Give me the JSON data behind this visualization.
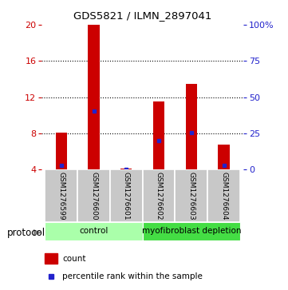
{
  "title": "GDS5821 / ILMN_2897041",
  "samples": [
    "GSM1276599",
    "GSM1276600",
    "GSM1276601",
    "GSM1276602",
    "GSM1276603",
    "GSM1276604"
  ],
  "bar_bottom": 4,
  "bar_tops": [
    8.1,
    20.0,
    4.08,
    11.5,
    13.5,
    6.8
  ],
  "percentile_values": [
    4.5,
    10.5,
    4.0,
    7.2,
    8.1,
    4.5
  ],
  "bar_color": "#cc0000",
  "percentile_color": "#2222cc",
  "ylim_left": [
    4,
    20
  ],
  "yticks_left": [
    4,
    8,
    12,
    16,
    20
  ],
  "yticks_right": [
    0,
    25,
    50,
    75,
    100
  ],
  "ytick_labels_right": [
    "0",
    "25",
    "50",
    "75",
    "100%"
  ],
  "left_axis_color": "#cc0000",
  "right_axis_color": "#2222cc",
  "group_row_color": "#c8c8c8",
  "group_border_color": "#ffffff",
  "control_color": "#aaffaa",
  "myofib_color": "#44dd44",
  "protocol_label": "protocol",
  "legend_count_label": "count",
  "legend_percentile_label": "percentile rank within the sample",
  "bar_width": 0.35
}
